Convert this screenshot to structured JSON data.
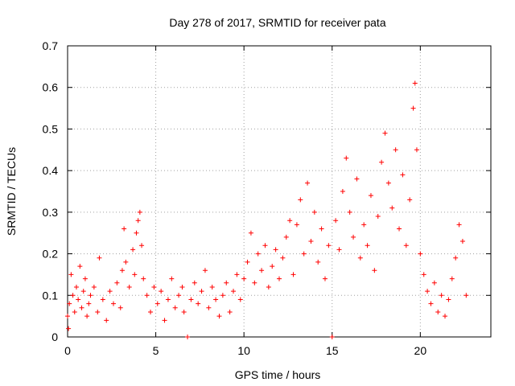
{
  "chart_data": {
    "type": "scatter",
    "title": "Day 278 of 2017, SRMTID for receiver pata",
    "xlabel": "GPS time / hours",
    "ylabel": "SRMTID / TECUs",
    "xlim": [
      0,
      24
    ],
    "ylim": [
      0,
      0.7
    ],
    "x_ticks": [
      0,
      5,
      10,
      15,
      20
    ],
    "x_tick_labels": [
      "0",
      "5",
      "10",
      "15",
      "20"
    ],
    "y_ticks": [
      0,
      0.1,
      0.2,
      0.3,
      0.4,
      0.5,
      0.6,
      0.7
    ],
    "y_tick_labels": [
      "0",
      "0.1",
      "0.2",
      "0.3",
      "0.4",
      "0.5",
      "0.6",
      "0.7"
    ],
    "grid": true,
    "marker": "+",
    "series_color": "#ff0000",
    "series": [
      {
        "name": "SRMTID",
        "points": [
          [
            0.0,
            0.05
          ],
          [
            0.05,
            0.02
          ],
          [
            0.1,
            0.08
          ],
          [
            0.2,
            0.15
          ],
          [
            0.3,
            0.1
          ],
          [
            0.4,
            0.06
          ],
          [
            0.5,
            0.12
          ],
          [
            0.6,
            0.09
          ],
          [
            0.7,
            0.17
          ],
          [
            0.8,
            0.07
          ],
          [
            0.9,
            0.11
          ],
          [
            1.0,
            0.14
          ],
          [
            1.1,
            0.05
          ],
          [
            1.2,
            0.08
          ],
          [
            1.3,
            0.1
          ],
          [
            1.5,
            0.12
          ],
          [
            1.7,
            0.06
          ],
          [
            1.8,
            0.19
          ],
          [
            2.0,
            0.09
          ],
          [
            2.2,
            0.04
          ],
          [
            2.4,
            0.11
          ],
          [
            2.6,
            0.08
          ],
          [
            2.8,
            0.13
          ],
          [
            3.0,
            0.07
          ],
          [
            3.1,
            0.16
          ],
          [
            3.2,
            0.26
          ],
          [
            3.3,
            0.18
          ],
          [
            3.5,
            0.12
          ],
          [
            3.7,
            0.21
          ],
          [
            3.8,
            0.15
          ],
          [
            3.9,
            0.25
          ],
          [
            4.0,
            0.28
          ],
          [
            4.1,
            0.3
          ],
          [
            4.2,
            0.22
          ],
          [
            4.3,
            0.14
          ],
          [
            4.5,
            0.1
          ],
          [
            4.7,
            0.06
          ],
          [
            4.9,
            0.12
          ],
          [
            5.1,
            0.08
          ],
          [
            5.3,
            0.11
          ],
          [
            5.5,
            0.04
          ],
          [
            5.7,
            0.09
          ],
          [
            5.9,
            0.14
          ],
          [
            6.1,
            0.07
          ],
          [
            6.3,
            0.1
          ],
          [
            6.5,
            0.12
          ],
          [
            6.6,
            0.06
          ],
          [
            6.8,
            0.0
          ],
          [
            7.0,
            0.09
          ],
          [
            7.2,
            0.13
          ],
          [
            7.4,
            0.08
          ],
          [
            7.6,
            0.11
          ],
          [
            7.8,
            0.16
          ],
          [
            8.0,
            0.07
          ],
          [
            8.2,
            0.12
          ],
          [
            8.4,
            0.09
          ],
          [
            8.6,
            0.05
          ],
          [
            8.8,
            0.1
          ],
          [
            9.0,
            0.13
          ],
          [
            9.2,
            0.06
          ],
          [
            9.4,
            0.11
          ],
          [
            9.6,
            0.15
          ],
          [
            9.8,
            0.09
          ],
          [
            10.0,
            0.14
          ],
          [
            10.2,
            0.18
          ],
          [
            10.4,
            0.25
          ],
          [
            10.6,
            0.13
          ],
          [
            10.8,
            0.2
          ],
          [
            11.0,
            0.16
          ],
          [
            11.2,
            0.22
          ],
          [
            11.4,
            0.12
          ],
          [
            11.6,
            0.17
          ],
          [
            11.8,
            0.21
          ],
          [
            12.0,
            0.14
          ],
          [
            12.2,
            0.19
          ],
          [
            12.4,
            0.24
          ],
          [
            12.6,
            0.28
          ],
          [
            12.8,
            0.15
          ],
          [
            13.0,
            0.27
          ],
          [
            13.2,
            0.33
          ],
          [
            13.4,
            0.2
          ],
          [
            13.6,
            0.37
          ],
          [
            13.8,
            0.23
          ],
          [
            14.0,
            0.3
          ],
          [
            14.2,
            0.18
          ],
          [
            14.4,
            0.26
          ],
          [
            14.6,
            0.14
          ],
          [
            14.8,
            0.22
          ],
          [
            15.0,
            0.0
          ],
          [
            15.2,
            0.28
          ],
          [
            15.4,
            0.21
          ],
          [
            15.6,
            0.35
          ],
          [
            15.8,
            0.43
          ],
          [
            16.0,
            0.3
          ],
          [
            16.2,
            0.24
          ],
          [
            16.4,
            0.38
          ],
          [
            16.6,
            0.19
          ],
          [
            16.8,
            0.27
          ],
          [
            17.0,
            0.22
          ],
          [
            17.2,
            0.34
          ],
          [
            17.4,
            0.16
          ],
          [
            17.6,
            0.29
          ],
          [
            17.8,
            0.42
          ],
          [
            18.0,
            0.49
          ],
          [
            18.2,
            0.37
          ],
          [
            18.4,
            0.31
          ],
          [
            18.6,
            0.45
          ],
          [
            18.8,
            0.26
          ],
          [
            19.0,
            0.39
          ],
          [
            19.2,
            0.22
          ],
          [
            19.4,
            0.33
          ],
          [
            19.6,
            0.55
          ],
          [
            19.7,
            0.61
          ],
          [
            19.8,
            0.45
          ],
          [
            20.0,
            0.2
          ],
          [
            20.2,
            0.15
          ],
          [
            20.4,
            0.11
          ],
          [
            20.6,
            0.08
          ],
          [
            20.8,
            0.13
          ],
          [
            21.0,
            0.06
          ],
          [
            21.2,
            0.1
          ],
          [
            21.4,
            0.05
          ],
          [
            21.6,
            0.09
          ],
          [
            21.8,
            0.14
          ],
          [
            22.0,
            0.19
          ],
          [
            22.2,
            0.27
          ],
          [
            22.4,
            0.23
          ],
          [
            22.6,
            0.1
          ]
        ]
      }
    ]
  }
}
